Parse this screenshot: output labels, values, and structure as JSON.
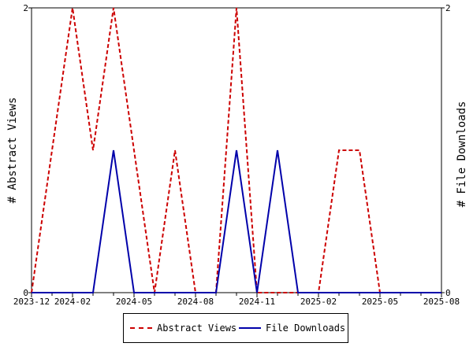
{
  "chart_data": {
    "type": "line",
    "x_ticks": [
      "2023-12",
      "2024-02",
      "2024-05",
      "2024-08",
      "2024-11",
      "2025-02",
      "2025-05",
      "2025-08"
    ],
    "x_range": [
      "2023-12",
      "2025-08"
    ],
    "y_left": {
      "label": "# Abstract Views",
      "ticks": [
        "0",
        "2"
      ],
      "range": [
        0,
        2
      ]
    },
    "y_right": {
      "label": "# File Downloads",
      "ticks": [
        "0",
        "2"
      ],
      "range": [
        0,
        2
      ]
    },
    "grid": false,
    "legend_placement": "bottom",
    "series": [
      {
        "name": "Abstract Views",
        "axis": "left",
        "color": "#cc0000",
        "style": "dashed",
        "x": [
          "2023-12",
          "2024-01",
          "2024-02",
          "2024-03",
          "2024-04",
          "2024-05",
          "2024-06",
          "2024-07",
          "2024-08",
          "2024-09",
          "2024-10",
          "2024-11",
          "2024-12",
          "2025-01",
          "2025-02",
          "2025-03",
          "2025-04",
          "2025-05",
          "2025-06",
          "2025-07",
          "2025-08"
        ],
        "values": [
          0,
          1,
          2,
          1,
          2,
          1,
          0,
          1,
          0,
          0,
          2,
          0,
          0,
          0,
          0,
          1,
          1,
          0,
          0,
          0,
          0
        ]
      },
      {
        "name": "File Downloads",
        "axis": "right",
        "color": "#0000aa",
        "style": "solid",
        "x": [
          "2023-12",
          "2024-01",
          "2024-02",
          "2024-03",
          "2024-04",
          "2024-05",
          "2024-06",
          "2024-07",
          "2024-08",
          "2024-09",
          "2024-10",
          "2024-11",
          "2024-12",
          "2025-01",
          "2025-02",
          "2025-03",
          "2025-04",
          "2025-05",
          "2025-06",
          "2025-07",
          "2025-08"
        ],
        "values": [
          0,
          0,
          0,
          0,
          1,
          0,
          0,
          0,
          0,
          0,
          1,
          0,
          1,
          0,
          0,
          0,
          0,
          0,
          0,
          0,
          0
        ]
      }
    ]
  }
}
